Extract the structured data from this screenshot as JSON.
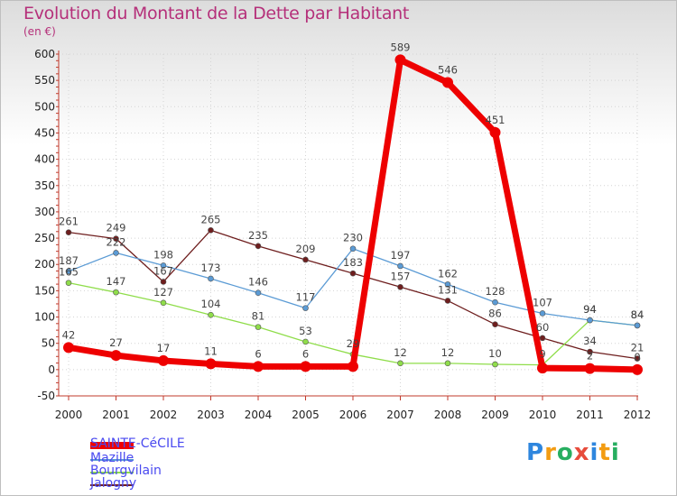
{
  "title": "Evolution du Montant de la Dette par Habitant",
  "unit": "(en €)",
  "logo": [
    "P",
    "r",
    "o",
    "x",
    "i",
    "t",
    "i"
  ],
  "chart_data": {
    "type": "line",
    "categories": [
      "2000",
      "2001",
      "2002",
      "2003",
      "2004",
      "2005",
      "2006",
      "2007",
      "2008",
      "2009",
      "2010",
      "2011",
      "2012"
    ],
    "ylim": [
      -50,
      600
    ],
    "yticks": [
      -50,
      0,
      50,
      100,
      150,
      200,
      250,
      300,
      350,
      400,
      450,
      500,
      550,
      600
    ],
    "series": [
      {
        "name": "Jalogny",
        "color": "#6e1e1e",
        "values": [
          261,
          249,
          167,
          265,
          235,
          209,
          183,
          157,
          131,
          86,
          60,
          34,
          21
        ],
        "labels": [
          "261",
          "249",
          "167",
          "265",
          "235",
          "209",
          "183",
          "157",
          "131",
          "86",
          "60",
          "34",
          "21"
        ]
      },
      {
        "name": "Bourgvilain",
        "color": "#8fdd4a",
        "values": [
          165,
          147,
          127,
          104,
          81,
          53,
          29,
          12,
          12,
          10,
          9,
          94,
          84
        ],
        "labels": [
          "165",
          "147",
          "127",
          "104",
          "81",
          "53",
          "29",
          "12",
          "12",
          "10",
          "9",
          "94",
          "84"
        ]
      },
      {
        "name": "Mazille",
        "color": "#5b9bd5",
        "values": [
          187,
          222,
          198,
          173,
          146,
          117,
          230,
          197,
          162,
          128,
          107,
          94,
          84
        ],
        "labels": [
          "187",
          "222",
          "198",
          "173",
          "146",
          "117",
          "230",
          "197",
          "162",
          "128",
          "107",
          "94",
          "84"
        ]
      },
      {
        "name": "SAINTE-CéCILE",
        "color": "#ee0000",
        "values": [
          42,
          27,
          17,
          11,
          6,
          6,
          6,
          589,
          546,
          451,
          3,
          2,
          0
        ],
        "labels": [
          "42",
          "27",
          "17",
          "11",
          "6",
          "6",
          "",
          "589",
          "546",
          "451",
          "",
          "2",
          "0"
        ]
      }
    ]
  }
}
